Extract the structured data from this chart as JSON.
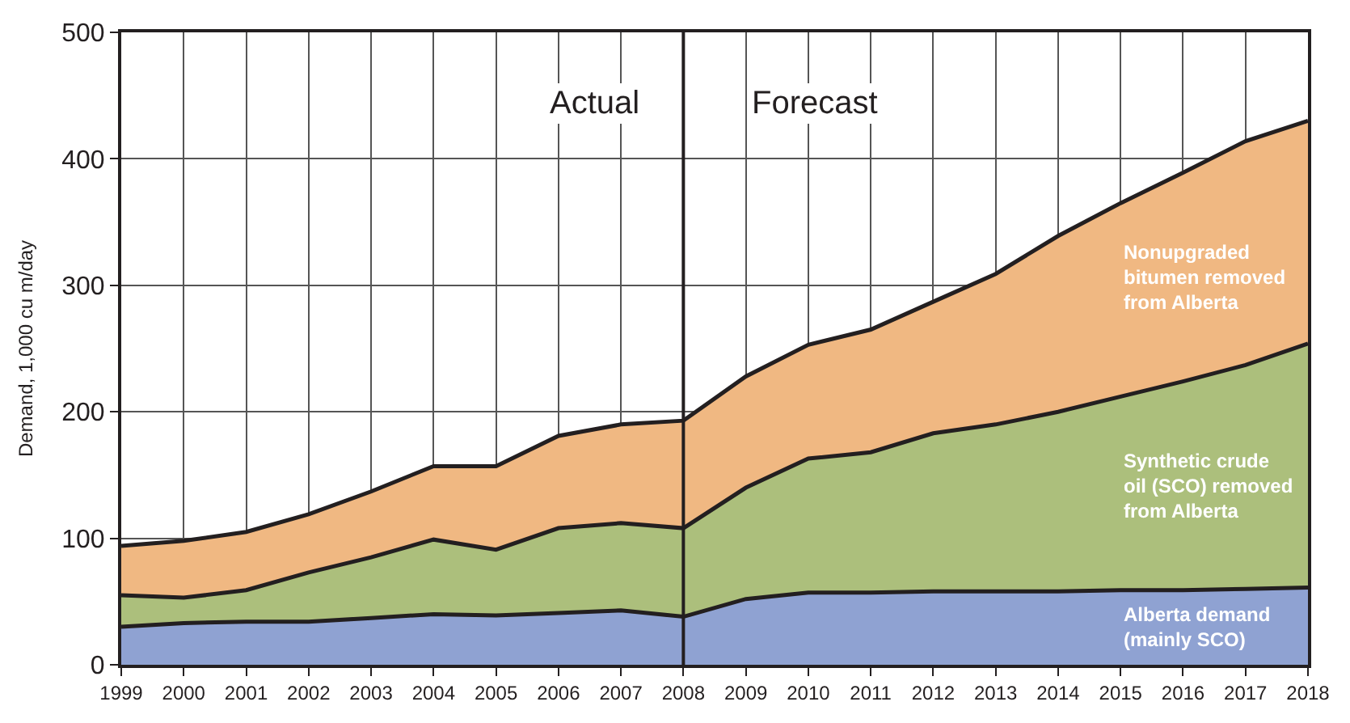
{
  "chart_data": {
    "type": "area",
    "stacked": true,
    "ylabel": "Demand, 1,000 cu m/day",
    "x": [
      1999,
      2000,
      2001,
      2002,
      2003,
      2004,
      2005,
      2006,
      2007,
      2008,
      2009,
      2010,
      2011,
      2012,
      2013,
      2014,
      2015,
      2016,
      2017,
      2018
    ],
    "series": [
      {
        "name": "Alberta demand\n(mainly SCO)",
        "color": "#8fa2d2",
        "values": [
          30,
          33,
          34,
          34,
          37,
          40,
          39,
          41,
          43,
          38,
          52,
          57,
          57,
          58,
          58,
          58,
          59,
          59,
          60,
          61
        ]
      },
      {
        "name": "Synthetic crude\noil (SCO) removed\nfrom Alberta",
        "color": "#acbf7c",
        "values": [
          25,
          20,
          25,
          39,
          48,
          59,
          52,
          67,
          69,
          70,
          88,
          106,
          111,
          125,
          132,
          142,
          153,
          165,
          177,
          193
        ]
      },
      {
        "name": "Nonupgraded\nbitumen removed\nfrom Alberta",
        "color": "#f0b882",
        "values": [
          39,
          45,
          46,
          46,
          52,
          58,
          66,
          73,
          78,
          85,
          88,
          90,
          97,
          104,
          119,
          139,
          153,
          165,
          177,
          176
        ]
      }
    ],
    "xlim": [
      1999,
      2018
    ],
    "xticks": [
      1999,
      2000,
      2001,
      2002,
      2003,
      2004,
      2005,
      2006,
      2007,
      2008,
      2009,
      2010,
      2011,
      2012,
      2013,
      2014,
      2015,
      2016,
      2017,
      2018
    ],
    "ylim": [
      0,
      500
    ],
    "yticks": [
      0,
      100,
      200,
      300,
      400,
      500
    ],
    "grid": true,
    "legend": false,
    "ref_lines": [
      {
        "axis": "x",
        "value": 2008,
        "color": "#231f20"
      }
    ],
    "annotations": [
      "Actual",
      "Forecast"
    ]
  }
}
